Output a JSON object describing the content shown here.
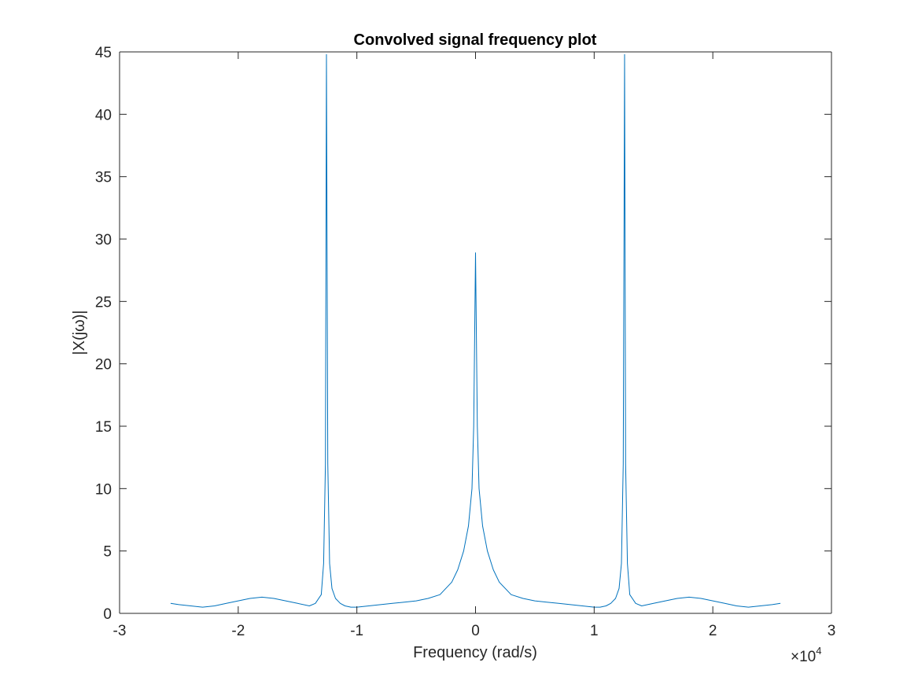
{
  "chart_data": {
    "type": "line",
    "title": "Convolved signal frequency plot",
    "xlabel": "Frequency (rad/s)",
    "ylabel": "|X(jω)|",
    "xlim": [
      -30000,
      30000
    ],
    "ylim": [
      0,
      45
    ],
    "x_ticks": [
      -30000,
      -20000,
      -10000,
      0,
      10000,
      20000,
      30000
    ],
    "x_tick_labels": [
      "-3",
      "-2",
      "-1",
      "0",
      "1",
      "2",
      "3"
    ],
    "y_ticks": [
      0,
      5,
      10,
      15,
      20,
      25,
      30,
      35,
      40,
      45
    ],
    "y_tick_labels": [
      "0",
      "5",
      "10",
      "15",
      "20",
      "25",
      "30",
      "35",
      "40",
      "45"
    ],
    "x_exponent_label": "×10",
    "x_exponent_power": "4",
    "grid": false,
    "line_color": "#0072BD",
    "series": [
      {
        "x": [
          -25700,
          -25000,
          -24000,
          -23000,
          -22000,
          -21000,
          -20000,
          -19000,
          -18000,
          -17000,
          -16000,
          -15000,
          -14000,
          -13500,
          -13000,
          -12800,
          -12650,
          -12566,
          -12450,
          -12300,
          -12100,
          -11800,
          -11400,
          -11000,
          -10500,
          -10000,
          -9000,
          -8000,
          -7000,
          -6000,
          -5000,
          -4000,
          -3000,
          -2000,
          -1500,
          -1000,
          -600,
          -300,
          -150,
          0,
          150,
          300,
          600,
          1000,
          1500,
          2000,
          3000,
          4000,
          5000,
          6000,
          7000,
          8000,
          9000,
          10000,
          10500,
          11000,
          11400,
          11800,
          12100,
          12300,
          12450,
          12566,
          12650,
          12800,
          13000,
          13500,
          14000,
          15000,
          16000,
          17000,
          18000,
          19000,
          20000,
          21000,
          22000,
          23000,
          24000,
          25000,
          25700
        ],
        "y": [
          0.8,
          0.7,
          0.6,
          0.5,
          0.6,
          0.8,
          1.0,
          1.2,
          1.3,
          1.2,
          1.0,
          0.8,
          0.6,
          0.8,
          1.5,
          4.0,
          12.0,
          44.8,
          12.0,
          4.0,
          2.0,
          1.2,
          0.8,
          0.6,
          0.5,
          0.5,
          0.6,
          0.7,
          0.8,
          0.9,
          1.0,
          1.2,
          1.5,
          2.5,
          3.5,
          5.0,
          7.0,
          10.0,
          15.0,
          28.9,
          15.0,
          10.0,
          7.0,
          5.0,
          3.5,
          2.5,
          1.5,
          1.2,
          1.0,
          0.9,
          0.8,
          0.7,
          0.6,
          0.5,
          0.5,
          0.6,
          0.8,
          1.2,
          2.0,
          4.0,
          12.0,
          44.8,
          12.0,
          4.0,
          1.5,
          0.8,
          0.6,
          0.8,
          1.0,
          1.2,
          1.3,
          1.2,
          1.0,
          0.8,
          0.6,
          0.5,
          0.6,
          0.7,
          0.8
        ]
      }
    ]
  }
}
